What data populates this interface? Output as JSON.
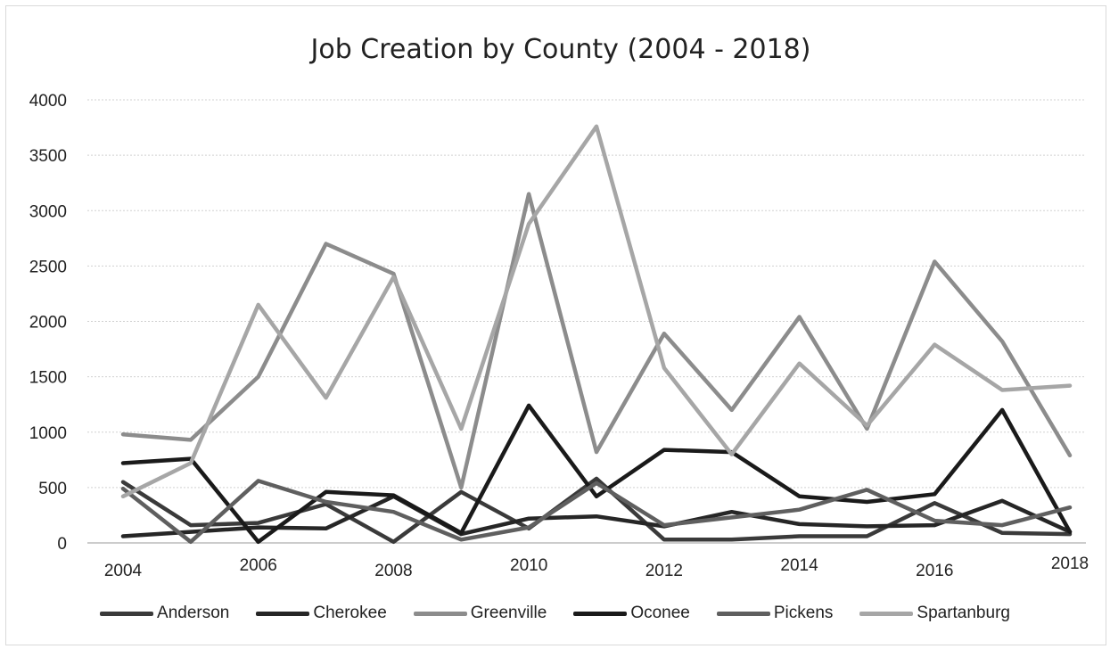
{
  "chart_data": {
    "type": "line",
    "title": "Job Creation by County (2004 - 2018)",
    "xlabel": "",
    "ylabel": "",
    "x": [
      2004,
      2005,
      2006,
      2007,
      2008,
      2009,
      2010,
      2011,
      2012,
      2013,
      2014,
      2015,
      2016,
      2017,
      2018
    ],
    "x_tick_labels": [
      "2004",
      "2006",
      "2008",
      "2010",
      "2012",
      "2014",
      "2016",
      "2018"
    ],
    "y_tick_labels": [
      "0",
      "500",
      "1000",
      "1500",
      "2000",
      "2500",
      "3000",
      "3500",
      "4000"
    ],
    "ylim": [
      0,
      4000
    ],
    "grid": true,
    "legend_position": "bottom",
    "series": [
      {
        "name": "Anderson",
        "color": "#3a3a3a",
        "values": [
          550,
          160,
          180,
          350,
          10,
          460,
          130,
          580,
          30,
          30,
          60,
          60,
          360,
          90,
          80
        ]
      },
      {
        "name": "Cherokee",
        "color": "#262626",
        "values": [
          60,
          100,
          140,
          130,
          420,
          80,
          220,
          240,
          150,
          280,
          170,
          150,
          160,
          380,
          100
        ]
      },
      {
        "name": "Greenville",
        "color": "#8c8c8c",
        "values": [
          980,
          930,
          1500,
          2700,
          2430,
          500,
          3150,
          820,
          1890,
          1200,
          2040,
          1030,
          2540,
          1820,
          790
        ]
      },
      {
        "name": "Oconee",
        "color": "#1a1a1a",
        "values": [
          720,
          760,
          10,
          460,
          430,
          90,
          1240,
          420,
          840,
          820,
          420,
          370,
          440,
          1200,
          100
        ]
      },
      {
        "name": "Pickens",
        "color": "#5f5f5f",
        "values": [
          490,
          10,
          560,
          370,
          280,
          30,
          140,
          540,
          160,
          230,
          300,
          480,
          200,
          160,
          320
        ]
      },
      {
        "name": "Spartanburg",
        "color": "#a6a6a6",
        "values": [
          420,
          720,
          2150,
          1310,
          2400,
          1030,
          2880,
          3760,
          1580,
          800,
          1620,
          1060,
          1790,
          1380,
          1420
        ]
      }
    ]
  }
}
